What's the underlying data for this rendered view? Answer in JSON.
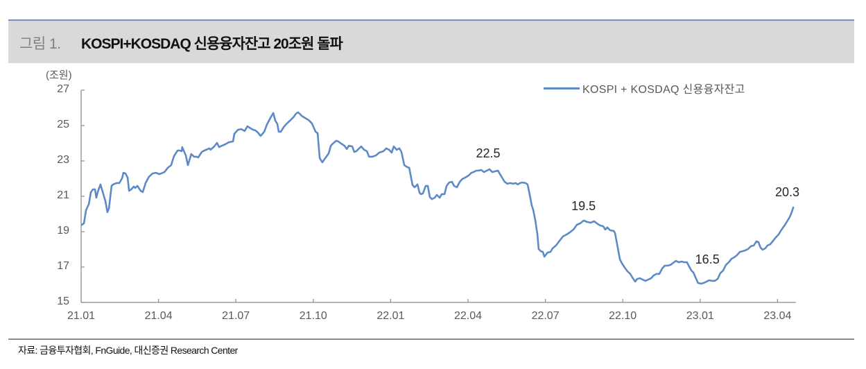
{
  "header": {
    "figure_number": "그림 1.",
    "title": "KOSPI+KOSDAQ 신용융자잔고 20조원 돌파",
    "rule_color": "#6f90c0",
    "band_color": "#d9d9d9"
  },
  "chart_data": {
    "type": "line",
    "title": "KOSPI+KOSDAQ 신용융자잔고 20조원 돌파",
    "xlabel": "",
    "ylabel": "(조원)",
    "ylim": [
      15,
      27
    ],
    "yticks": [
      "27",
      "25",
      "23",
      "21",
      "19",
      "17",
      "15"
    ],
    "xticks": [
      "21.01",
      "21.04",
      "21.07",
      "21.10",
      "22.01",
      "22.04",
      "22.07",
      "22.10",
      "23.01",
      "23.04"
    ],
    "grid": false,
    "legend_position": "top-right",
    "line_color": "#5b8ac6",
    "x_unit": "months since 2021.01",
    "series": [
      {
        "name": "KOSPI + KOSDAQ 신용융자잔고",
        "points": [
          [
            0.03,
            19.39
          ],
          [
            0.11,
            19.47
          ],
          [
            0.19,
            20.22
          ],
          [
            0.3,
            20.57
          ],
          [
            0.38,
            21.24
          ],
          [
            0.46,
            21.39
          ],
          [
            0.54,
            21.39
          ],
          [
            0.59,
            20.92
          ],
          [
            0.65,
            21.27
          ],
          [
            0.75,
            21.67
          ],
          [
            0.83,
            21.27
          ],
          [
            0.94,
            20.73
          ],
          [
            1.02,
            20.1
          ],
          [
            1.08,
            20.33
          ],
          [
            1.18,
            21.59
          ],
          [
            1.24,
            21.67
          ],
          [
            1.37,
            21.75
          ],
          [
            1.48,
            21.75
          ],
          [
            1.59,
            22.02
          ],
          [
            1.64,
            22.33
          ],
          [
            1.72,
            22.29
          ],
          [
            1.8,
            22.06
          ],
          [
            1.86,
            21.31
          ],
          [
            1.94,
            21.39
          ],
          [
            2.04,
            21.55
          ],
          [
            2.1,
            21.47
          ],
          [
            2.18,
            21.59
          ],
          [
            2.31,
            21.31
          ],
          [
            2.39,
            21.24
          ],
          [
            2.5,
            21.75
          ],
          [
            2.63,
            22.1
          ],
          [
            2.77,
            22.29
          ],
          [
            2.9,
            22.33
          ],
          [
            3.04,
            22.25
          ],
          [
            3.23,
            22.37
          ],
          [
            3.36,
            22.61
          ],
          [
            3.49,
            22.76
          ],
          [
            3.6,
            23.27
          ],
          [
            3.74,
            23.59
          ],
          [
            3.82,
            23.59
          ],
          [
            3.9,
            23.55
          ],
          [
            3.92,
            23.78
          ],
          [
            4.06,
            23.31
          ],
          [
            4.14,
            22.76
          ],
          [
            4.19,
            23.0
          ],
          [
            4.27,
            23.39
          ],
          [
            4.38,
            23.24
          ],
          [
            4.46,
            23.24
          ],
          [
            4.54,
            23.2
          ],
          [
            4.68,
            23.51
          ],
          [
            4.78,
            23.59
          ],
          [
            4.97,
            23.71
          ],
          [
            5.02,
            23.63
          ],
          [
            5.16,
            23.82
          ],
          [
            5.27,
            24.02
          ],
          [
            5.35,
            23.78
          ],
          [
            5.46,
            23.86
          ],
          [
            5.59,
            23.94
          ],
          [
            5.73,
            24.06
          ],
          [
            5.89,
            24.1
          ],
          [
            5.94,
            24.53
          ],
          [
            6.08,
            24.76
          ],
          [
            6.21,
            24.8
          ],
          [
            6.34,
            24.69
          ],
          [
            6.45,
            24.96
          ],
          [
            6.53,
            24.88
          ],
          [
            6.67,
            24.76
          ],
          [
            6.75,
            24.73
          ],
          [
            6.85,
            24.61
          ],
          [
            6.96,
            24.41
          ],
          [
            7.1,
            24.65
          ],
          [
            7.2,
            25.04
          ],
          [
            7.34,
            25.43
          ],
          [
            7.45,
            25.71
          ],
          [
            7.53,
            25.27
          ],
          [
            7.61,
            25.08
          ],
          [
            7.66,
            24.65
          ],
          [
            7.74,
            24.65
          ],
          [
            7.88,
            24.96
          ],
          [
            7.98,
            25.12
          ],
          [
            8.12,
            25.31
          ],
          [
            8.23,
            25.47
          ],
          [
            8.33,
            25.67
          ],
          [
            8.41,
            25.75
          ],
          [
            8.47,
            25.67
          ],
          [
            8.55,
            25.55
          ],
          [
            8.68,
            25.43
          ],
          [
            8.82,
            25.31
          ],
          [
            8.95,
            25.12
          ],
          [
            9.09,
            24.65
          ],
          [
            9.17,
            24.57
          ],
          [
            9.25,
            23.16
          ],
          [
            9.35,
            22.92
          ],
          [
            9.49,
            23.2
          ],
          [
            9.6,
            23.43
          ],
          [
            9.68,
            23.86
          ],
          [
            9.76,
            23.98
          ],
          [
            9.89,
            24.14
          ],
          [
            9.97,
            24.1
          ],
          [
            10.08,
            23.98
          ],
          [
            10.21,
            23.86
          ],
          [
            10.3,
            23.67
          ],
          [
            10.38,
            23.86
          ],
          [
            10.51,
            23.82
          ],
          [
            10.59,
            23.51
          ],
          [
            10.67,
            23.55
          ],
          [
            10.78,
            23.71
          ],
          [
            10.86,
            23.82
          ],
          [
            10.97,
            23.63
          ],
          [
            11.08,
            23.55
          ],
          [
            11.16,
            23.24
          ],
          [
            11.29,
            23.24
          ],
          [
            11.43,
            23.31
          ],
          [
            11.56,
            23.47
          ],
          [
            11.72,
            23.55
          ],
          [
            11.83,
            23.71
          ],
          [
            11.94,
            23.63
          ],
          [
            12.04,
            23.47
          ],
          [
            12.12,
            23.82
          ],
          [
            12.23,
            23.63
          ],
          [
            12.34,
            23.71
          ],
          [
            12.42,
            23.51
          ],
          [
            12.53,
            22.76
          ],
          [
            12.64,
            22.65
          ],
          [
            12.72,
            22.61
          ],
          [
            12.85,
            21.63
          ],
          [
            12.93,
            21.51
          ],
          [
            13.04,
            21.67
          ],
          [
            13.12,
            21.2
          ],
          [
            13.17,
            21.12
          ],
          [
            13.25,
            21.16
          ],
          [
            13.36,
            21.59
          ],
          [
            13.44,
            21.59
          ],
          [
            13.52,
            20.96
          ],
          [
            13.6,
            20.84
          ],
          [
            13.71,
            20.92
          ],
          [
            13.79,
            21.08
          ],
          [
            13.9,
            20.92
          ],
          [
            13.98,
            21.12
          ],
          [
            14.09,
            21.12
          ],
          [
            14.17,
            21.59
          ],
          [
            14.27,
            21.78
          ],
          [
            14.38,
            21.82
          ],
          [
            14.46,
            21.59
          ],
          [
            14.57,
            21.51
          ],
          [
            14.68,
            21.82
          ],
          [
            14.78,
            21.98
          ],
          [
            14.89,
            22.06
          ],
          [
            15.03,
            22.18
          ],
          [
            15.13,
            22.33
          ],
          [
            15.21,
            22.37
          ],
          [
            15.32,
            22.45
          ],
          [
            15.4,
            22.45
          ],
          [
            15.51,
            22.49
          ],
          [
            15.62,
            22.37
          ],
          [
            15.73,
            22.45
          ],
          [
            15.83,
            22.53
          ],
          [
            15.94,
            22.37
          ],
          [
            16.05,
            22.41
          ],
          [
            16.16,
            22.45
          ],
          [
            16.24,
            22.25
          ],
          [
            16.32,
            22.06
          ],
          [
            16.42,
            21.82
          ],
          [
            16.53,
            21.71
          ],
          [
            16.64,
            21.75
          ],
          [
            16.75,
            21.71
          ],
          [
            16.85,
            21.75
          ],
          [
            16.93,
            21.67
          ],
          [
            17.02,
            21.75
          ],
          [
            17.1,
            21.78
          ],
          [
            17.23,
            21.75
          ],
          [
            17.31,
            21.67
          ],
          [
            17.37,
            21.24
          ],
          [
            17.42,
            20.88
          ],
          [
            17.47,
            20.49
          ],
          [
            17.53,
            20.22
          ],
          [
            17.61,
            19.63
          ],
          [
            17.69,
            18.84
          ],
          [
            17.74,
            18.02
          ],
          [
            17.82,
            17.9
          ],
          [
            17.9,
            17.86
          ],
          [
            17.96,
            17.59
          ],
          [
            18.09,
            17.82
          ],
          [
            18.2,
            17.86
          ],
          [
            18.28,
            18.06
          ],
          [
            18.41,
            18.22
          ],
          [
            18.55,
            18.49
          ],
          [
            18.68,
            18.73
          ],
          [
            18.82,
            18.84
          ],
          [
            18.95,
            18.96
          ],
          [
            19.09,
            19.12
          ],
          [
            19.22,
            19.39
          ],
          [
            19.35,
            19.47
          ],
          [
            19.49,
            19.63
          ],
          [
            19.62,
            19.55
          ],
          [
            19.76,
            19.51
          ],
          [
            19.89,
            19.59
          ],
          [
            20.03,
            19.43
          ],
          [
            20.13,
            19.35
          ],
          [
            20.24,
            19.31
          ],
          [
            20.32,
            19.12
          ],
          [
            20.4,
            19.24
          ],
          [
            20.51,
            19.08
          ],
          [
            20.65,
            19.04
          ],
          [
            20.7,
            18.92
          ],
          [
            20.75,
            18.53
          ],
          [
            20.83,
            17.9
          ],
          [
            20.89,
            17.43
          ],
          [
            20.97,
            17.2
          ],
          [
            21.08,
            16.96
          ],
          [
            21.18,
            16.76
          ],
          [
            21.29,
            16.61
          ],
          [
            21.37,
            16.41
          ],
          [
            21.48,
            16.18
          ],
          [
            21.56,
            16.33
          ],
          [
            21.67,
            16.37
          ],
          [
            21.77,
            16.29
          ],
          [
            21.88,
            16.22
          ],
          [
            21.99,
            16.29
          ],
          [
            22.1,
            16.37
          ],
          [
            22.2,
            16.53
          ],
          [
            22.31,
            16.61
          ],
          [
            22.42,
            16.61
          ],
          [
            22.53,
            16.92
          ],
          [
            22.63,
            17.08
          ],
          [
            22.74,
            17.08
          ],
          [
            22.85,
            17.12
          ],
          [
            22.96,
            17.24
          ],
          [
            23.06,
            17.35
          ],
          [
            23.17,
            17.27
          ],
          [
            23.28,
            17.31
          ],
          [
            23.39,
            17.27
          ],
          [
            23.49,
            17.27
          ],
          [
            23.57,
            17.04
          ],
          [
            23.66,
            16.8
          ],
          [
            23.74,
            16.69
          ],
          [
            23.82,
            16.41
          ],
          [
            23.92,
            16.1
          ],
          [
            24.03,
            16.06
          ],
          [
            24.14,
            16.1
          ],
          [
            24.25,
            16.18
          ],
          [
            24.35,
            16.25
          ],
          [
            24.46,
            16.22
          ],
          [
            24.57,
            16.22
          ],
          [
            24.68,
            16.33
          ],
          [
            24.78,
            16.65
          ],
          [
            24.89,
            16.8
          ],
          [
            25.0,
            17.12
          ],
          [
            25.11,
            17.27
          ],
          [
            25.22,
            17.47
          ],
          [
            25.32,
            17.55
          ],
          [
            25.43,
            17.67
          ],
          [
            25.54,
            17.86
          ],
          [
            25.65,
            17.9
          ],
          [
            25.75,
            17.94
          ],
          [
            25.86,
            18.02
          ],
          [
            25.97,
            18.18
          ],
          [
            26.08,
            18.22
          ],
          [
            26.18,
            18.45
          ],
          [
            26.26,
            18.41
          ],
          [
            26.34,
            18.1
          ],
          [
            26.42,
            17.98
          ],
          [
            26.53,
            18.06
          ],
          [
            26.61,
            18.22
          ],
          [
            26.72,
            18.29
          ],
          [
            26.83,
            18.49
          ],
          [
            26.94,
            18.69
          ],
          [
            27.04,
            18.84
          ],
          [
            27.12,
            19.04
          ],
          [
            27.2,
            19.2
          ],
          [
            27.31,
            19.43
          ],
          [
            27.39,
            19.63
          ],
          [
            27.47,
            19.82
          ],
          [
            27.55,
            20.1
          ],
          [
            27.61,
            20.37
          ]
        ]
      }
    ],
    "annotations": [
      {
        "label": "22.5",
        "x": 15.9,
        "y": 22.5
      },
      {
        "label": "19.5",
        "x": 19.6,
        "y": 19.5
      },
      {
        "label": "16.5",
        "x": 24.4,
        "y": 16.5
      },
      {
        "label": "20.3",
        "x": 27.5,
        "y": 20.3
      }
    ]
  },
  "footer": {
    "source": "자료: 금융투자협회, FnGuide, 대신증권 Research Center"
  }
}
